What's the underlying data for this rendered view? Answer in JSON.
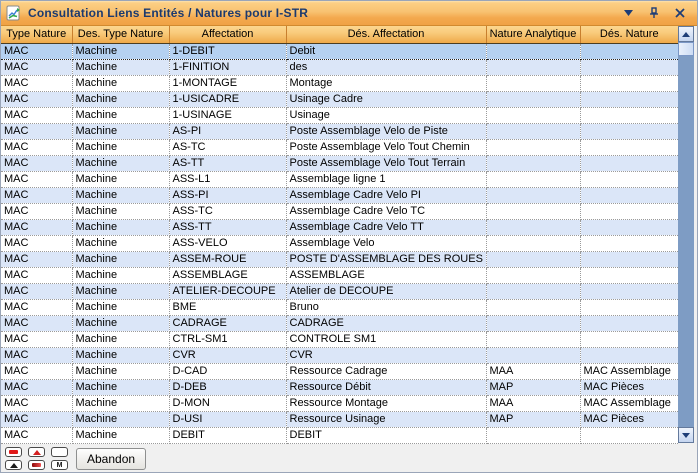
{
  "window": {
    "title": "Consultation Liens Entités / Natures pour I-STR",
    "icons": {
      "app": "chart-document-icon",
      "menu": "chevron-down-icon",
      "pin": "pin-icon",
      "close": "close-icon"
    }
  },
  "table": {
    "columns": [
      "Type Nature",
      "Des. Type Nature",
      "Affectation",
      "Dés. Affectation",
      "Nature Analytique",
      "Dés. Nature"
    ],
    "selected_row_index": 0,
    "rows": [
      [
        "MAC",
        "Machine",
        "1-DEBIT",
        "Debit",
        "",
        ""
      ],
      [
        "MAC",
        "Machine",
        "1-FINITION",
        "des",
        "",
        ""
      ],
      [
        "MAC",
        "Machine",
        "1-MONTAGE",
        "Montage",
        "",
        ""
      ],
      [
        "MAC",
        "Machine",
        "1-USICADRE",
        "Usinage Cadre",
        "",
        ""
      ],
      [
        "MAC",
        "Machine",
        "1-USINAGE",
        "Usinage",
        "",
        ""
      ],
      [
        "MAC",
        "Machine",
        "AS-PI",
        "Poste Assemblage Velo de Piste",
        "",
        ""
      ],
      [
        "MAC",
        "Machine",
        "AS-TC",
        "Poste Assemblage Velo Tout Chemin",
        "",
        ""
      ],
      [
        "MAC",
        "Machine",
        "AS-TT",
        "Poste Assemblage Velo Tout Terrain",
        "",
        ""
      ],
      [
        "MAC",
        "Machine",
        "ASS-L1",
        "Assemblage ligne 1",
        "",
        ""
      ],
      [
        "MAC",
        "Machine",
        "ASS-PI",
        "Assemblage Cadre Velo PI",
        "",
        ""
      ],
      [
        "MAC",
        "Machine",
        "ASS-TC",
        "Assemblage Cadre Velo TC",
        "",
        ""
      ],
      [
        "MAC",
        "Machine",
        "ASS-TT",
        "Assemblage Cadre Velo TT",
        "",
        ""
      ],
      [
        "MAC",
        "Machine",
        "ASS-VELO",
        "Assemblage Velo",
        "",
        ""
      ],
      [
        "MAC",
        "Machine",
        "ASSEM-ROUE",
        "POSTE D'ASSEMBLAGE DES ROUES",
        "",
        ""
      ],
      [
        "MAC",
        "Machine",
        "ASSEMBLAGE",
        "ASSEMBLAGE",
        "",
        ""
      ],
      [
        "MAC",
        "Machine",
        "ATELIER-DECOUPE",
        "Atelier de DECOUPE",
        "",
        ""
      ],
      [
        "MAC",
        "Machine",
        "BME",
        "Bruno",
        "",
        ""
      ],
      [
        "MAC",
        "Machine",
        "CADRAGE",
        "CADRAGE",
        "",
        ""
      ],
      [
        "MAC",
        "Machine",
        "CTRL-SM1",
        "CONTROLE SM1",
        "",
        ""
      ],
      [
        "MAC",
        "Machine",
        "CVR",
        "CVR",
        "",
        ""
      ],
      [
        "MAC",
        "Machine",
        "D-CAD",
        "Ressource Cadrage",
        "MAA",
        "MAC Assemblage"
      ],
      [
        "MAC",
        "Machine",
        "D-DEB",
        "Ressource Débit",
        "MAP",
        "MAC Pièces"
      ],
      [
        "MAC",
        "Machine",
        "D-MON",
        "Ressource Montage",
        "MAA",
        "MAC Assemblage"
      ],
      [
        "MAC",
        "Machine",
        "D-USI",
        "Ressource Usinage",
        "MAP",
        "MAC Pièces"
      ],
      [
        "MAC",
        "Machine",
        "DEBIT",
        "DEBIT",
        "",
        ""
      ]
    ]
  },
  "scrollbar": {
    "up_icon": "scroll-up-icon",
    "down_icon": "scroll-down-icon"
  },
  "footer": {
    "abandon_label": "Abandon",
    "nav_icons": [
      "red-bar-icon",
      "red-triangle-up-icon",
      "blank-icon",
      "black-triangle-up-icon",
      "red-bar-gradient-icon",
      "letter-m-icon"
    ]
  },
  "colors": {
    "titlebar_top": "#fccf84",
    "titlebar_bottom": "#f0a245",
    "header_top": "#fcd68f",
    "header_bottom": "#efa94a",
    "title_text": "#1c3a6e",
    "row_selected": "#b5d1f1",
    "row_alt": "#dbe6f8",
    "row_white": "#ffffff",
    "scroll_track": "#7e9cc4",
    "footer_bg": "#f0f0f0"
  }
}
